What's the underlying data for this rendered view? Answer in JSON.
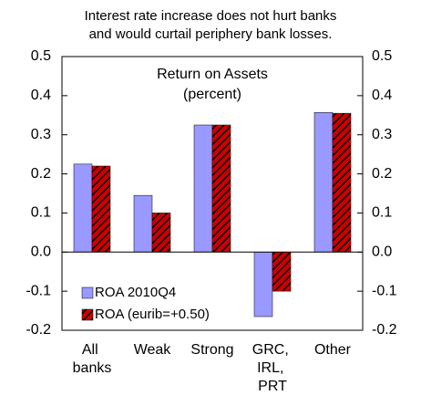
{
  "chart_data": {
    "type": "bar",
    "title": [
      "Interest rate increase does not hurt banks",
      "and would curtail periphery bank losses."
    ],
    "annotation": [
      "Return on Assets",
      "(percent)"
    ],
    "categories": [
      "All banks",
      "Weak",
      "Strong",
      "GRC, IRL, PRT",
      "Other"
    ],
    "series": [
      {
        "name": "ROA 2010Q4",
        "color": "#9999ff",
        "values": [
          0.225,
          0.145,
          0.325,
          -0.165,
          0.357
        ]
      },
      {
        "name": "ROA (eurib=+0.50)",
        "color": "#cc0000",
        "hatch": "#000000",
        "values": [
          0.22,
          0.1,
          0.325,
          -0.1,
          0.355
        ]
      }
    ],
    "ylim": [
      -0.2,
      0.5
    ],
    "yticks": [
      -0.2,
      -0.1,
      {
        "value": 0,
        "label": "0.0"
      },
      0.1,
      0.2,
      0.3,
      0.4,
      0.5
    ],
    "y2lim": [
      -0.2,
      0.5
    ],
    "y2ticks": [
      -0.2,
      -0.1,
      {
        "value": 0,
        "label": "0.0"
      },
      0.1,
      0.2,
      0.3,
      0.4,
      0.5
    ],
    "legend": "lower left"
  }
}
